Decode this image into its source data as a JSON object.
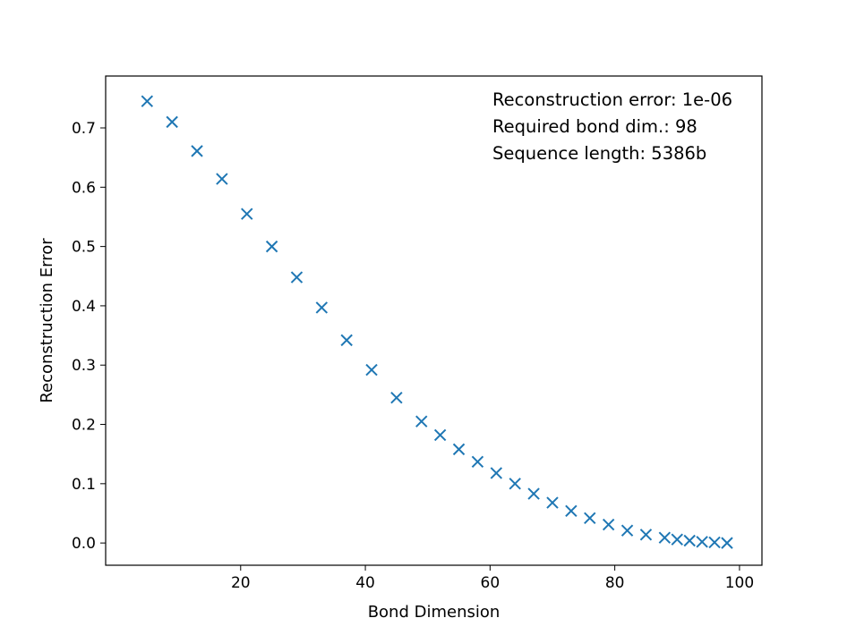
{
  "chart_data": {
    "type": "scatter",
    "title": "",
    "xlabel": "Bond Dimension",
    "ylabel": "Reconstruction Error",
    "xlim": [
      -1.65,
      103.6
    ],
    "ylim": [
      -0.0375,
      0.7875
    ],
    "xticks": [
      20,
      40,
      60,
      80,
      100
    ],
    "yticks": [
      0.0,
      0.1,
      0.2,
      0.3,
      0.4,
      0.5,
      0.6,
      0.7
    ],
    "ytick_labels": [
      "0.0",
      "0.1",
      "0.2",
      "0.3",
      "0.4",
      "0.5",
      "0.6",
      "0.7"
    ],
    "grid": false,
    "marker": "x",
    "color": "#1f77b4",
    "annotations": [
      "Reconstruction error: 1e-06",
      "Required bond dim.: 98",
      "Sequence length: 5386b"
    ],
    "series": [
      {
        "x": [
          5,
          9,
          13,
          17,
          21,
          25,
          29,
          33,
          37,
          41,
          45,
          49,
          52,
          55,
          58,
          61,
          64,
          67,
          70,
          73,
          76,
          79,
          82,
          85,
          88,
          90,
          92,
          94,
          96,
          98
        ],
        "y": [
          0.745,
          0.71,
          0.661,
          0.614,
          0.555,
          0.5,
          0.448,
          0.397,
          0.342,
          0.292,
          0.245,
          0.205,
          0.182,
          0.158,
          0.137,
          0.118,
          0.1,
          0.083,
          0.068,
          0.054,
          0.042,
          0.031,
          0.021,
          0.014,
          0.009,
          0.006,
          0.004,
          0.002,
          0.001,
          0.0
        ]
      }
    ]
  }
}
